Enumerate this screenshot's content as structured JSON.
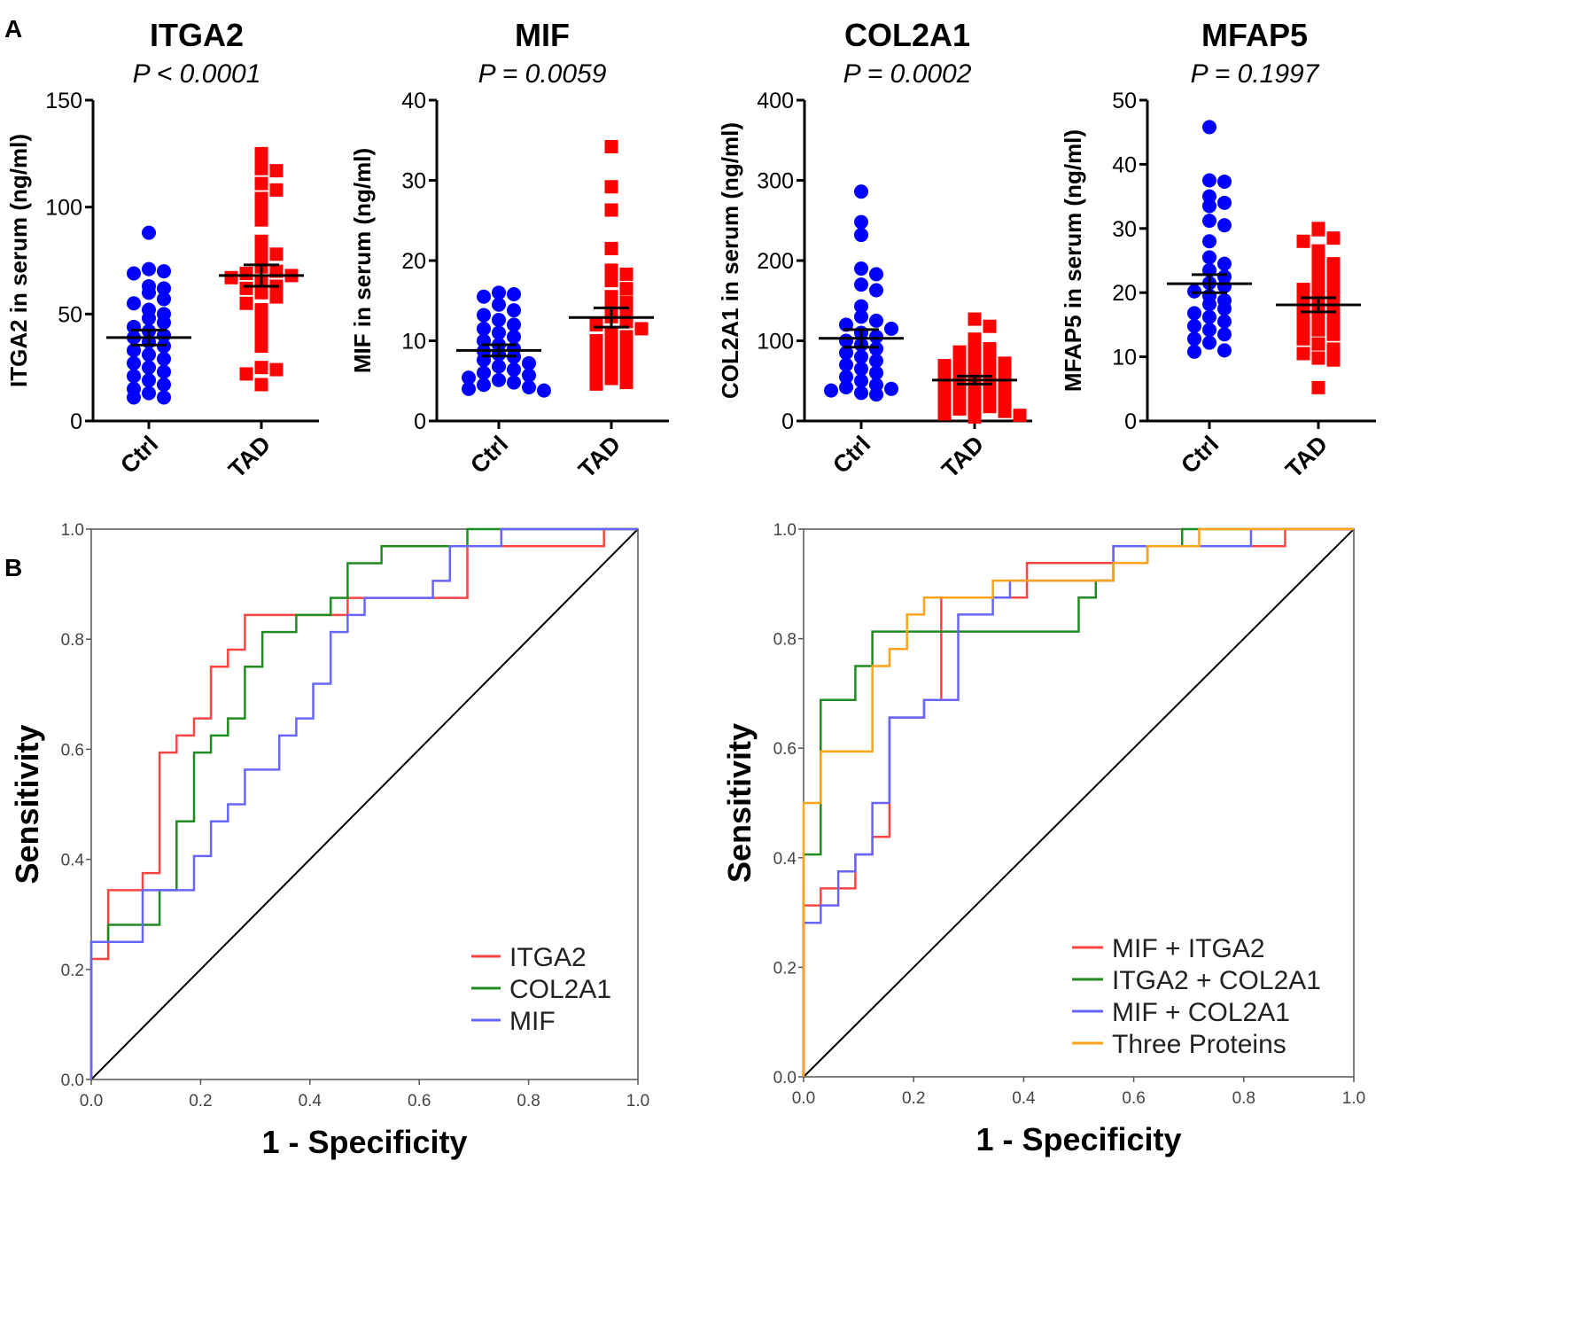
{
  "panels": {
    "a": "A",
    "b": "B"
  },
  "colors": {
    "ctrl": "#0000ff",
    "tad": "#ff0000",
    "red": "#ff4444",
    "green": "#1e8c1e",
    "blue": "#6666ff",
    "orange": "#ffa31a"
  },
  "chart_data": [
    {
      "type": "scatter",
      "title": "ITGA2",
      "subtitle": "P < 0.0001",
      "ylabel": "ITGA2 in serum (ng/ml)",
      "ylim": [
        0,
        150
      ],
      "yticks": [
        0,
        50,
        100,
        150
      ],
      "categories": [
        "Ctrl",
        "TAD"
      ],
      "groups": [
        {
          "name": "Ctrl",
          "mean": 39,
          "sem": 3.5,
          "values": [
            88,
            71,
            70,
            69,
            63,
            62,
            60,
            57,
            55,
            52,
            50,
            48,
            46,
            44,
            42,
            40,
            39,
            37,
            35,
            33,
            31,
            29,
            27,
            25,
            23,
            21,
            19,
            17,
            15,
            13,
            11,
            11
          ]
        },
        {
          "name": "TAD",
          "mean": 68,
          "sem": 5,
          "values": [
            125,
            121,
            118,
            117,
            111,
            108,
            104,
            99,
            94,
            84,
            80,
            78,
            75,
            72,
            70,
            69,
            68,
            67,
            65,
            63,
            62,
            60,
            58,
            55,
            52,
            47,
            41,
            35,
            25,
            24,
            22,
            17
          ]
        }
      ]
    },
    {
      "type": "scatter",
      "title": "MIF",
      "subtitle": "P = 0.0059",
      "ylabel": "MIF in serum (ng/ml)",
      "ylim": [
        0,
        40
      ],
      "yticks": [
        0,
        10,
        20,
        30,
        40
      ],
      "categories": [
        "Ctrl",
        "TAD"
      ],
      "groups": [
        {
          "name": "Ctrl",
          "mean": 8.8,
          "sem": 0.7,
          "values": [
            16,
            15.8,
            15.5,
            14.5,
            13.8,
            13.2,
            12.6,
            12,
            11.5,
            11,
            10.5,
            10,
            9.5,
            9,
            8.7,
            8.3,
            8,
            7.6,
            7.2,
            6.8,
            6.4,
            6,
            5.7,
            5.4,
            5.1,
            4.8,
            4.5,
            4.2,
            4,
            3.8
          ]
        },
        {
          "name": "TAD",
          "mean": 12.9,
          "sem": 1.2,
          "values": [
            34.2,
            29.2,
            26.3,
            21.5,
            18.8,
            18.3,
            17.5,
            16.5,
            15.5,
            14.8,
            14,
            13.4,
            13,
            12.4,
            12,
            11.5,
            11,
            10.5,
            10,
            9.5,
            9,
            8.5,
            8,
            7.5,
            7,
            6.6,
            6,
            5.6,
            5.3,
            4.8,
            4.6
          ]
        }
      ]
    },
    {
      "type": "scatter",
      "title": "COL2A1",
      "subtitle": "P = 0.0002",
      "ylabel": "COL2A1 in serum (ng/ml)",
      "ylim": [
        0,
        400
      ],
      "yticks": [
        0,
        100,
        200,
        300,
        400
      ],
      "categories": [
        "Ctrl",
        "TAD"
      ],
      "groups": [
        {
          "name": "Ctrl",
          "mean": 103,
          "sem": 11,
          "values": [
            286,
            248,
            232,
            190,
            183,
            170,
            163,
            143,
            130,
            125,
            120,
            115,
            110,
            105,
            100,
            95,
            90,
            85,
            80,
            75,
            70,
            65,
            60,
            55,
            50,
            45,
            42,
            40,
            38,
            35,
            33
          ]
        },
        {
          "name": "TAD",
          "mean": 51,
          "sem": 5,
          "values": [
            127,
            118,
            102,
            95,
            90,
            86,
            82,
            78,
            75,
            72,
            69,
            66,
            63,
            60,
            57,
            54,
            51,
            48,
            45,
            42,
            39,
            36,
            33,
            30,
            27,
            24,
            21,
            18,
            15,
            12,
            9,
            7,
            5
          ]
        }
      ]
    },
    {
      "type": "scatter",
      "title": "MFAP5",
      "subtitle": "P = 0.1997",
      "ylabel": "MFAP5 in serum (ng/ml)",
      "ylim": [
        0,
        50
      ],
      "yticks": [
        0,
        10,
        20,
        30,
        40,
        50
      ],
      "categories": [
        "Ctrl",
        "TAD"
      ],
      "groups": [
        {
          "name": "Ctrl",
          "mean": 21.4,
          "sem": 1.4,
          "values": [
            45.8,
            37.5,
            37.3,
            35,
            34,
            33.5,
            31.2,
            30.5,
            28,
            25.5,
            24.5,
            23.5,
            22.5,
            21.5,
            21,
            20.2,
            19.5,
            18.8,
            18.2,
            17.5,
            16.8,
            16.2,
            15.5,
            14.8,
            14.2,
            13.5,
            12.8,
            12.2,
            11,
            10.8
          ]
        },
        {
          "name": "TAD",
          "mean": 18.1,
          "sem": 1.1,
          "values": [
            30,
            29.8,
            28.5,
            28,
            26.5,
            25.5,
            24.5,
            23.5,
            22.5,
            21.5,
            21,
            20.5,
            19.8,
            19.2,
            18.5,
            18,
            17.5,
            16.8,
            16.2,
            15.5,
            14.8,
            14.2,
            13.5,
            12.8,
            12,
            11.2,
            10.5,
            9.8,
            9.5,
            5.2
          ]
        }
      ]
    },
    {
      "type": "line",
      "title": "",
      "xlabel": "1 - Specificity",
      "ylabel": "Sensitivity",
      "xlim": [
        0,
        1
      ],
      "ylim": [
        0,
        1
      ],
      "xticks": [
        "0.0",
        "0.2",
        "0.4",
        "0.6",
        "0.8",
        "1.0"
      ],
      "yticks": [
        "0.0",
        "0.2",
        "0.4",
        "0.6",
        "0.8",
        "1.0"
      ],
      "legend": [
        "ITGA2",
        "COL2A1",
        "MIF"
      ],
      "series": [
        {
          "name": "ITGA2",
          "color": "#ff4444",
          "x": [
            0,
            0,
            0.031,
            0.031,
            0.094,
            0.094,
            0.125,
            0.125,
            0.156,
            0.156,
            0.188,
            0.188,
            0.219,
            0.219,
            0.25,
            0.25,
            0.281,
            0.281,
            0.469,
            0.469,
            0.688,
            0.688,
            0.938,
            0.938,
            1
          ],
          "y": [
            0,
            0.219,
            0.219,
            0.344,
            0.344,
            0.375,
            0.375,
            0.594,
            0.594,
            0.625,
            0.625,
            0.656,
            0.656,
            0.75,
            0.75,
            0.781,
            0.781,
            0.844,
            0.844,
            0.875,
            0.875,
            0.969,
            0.969,
            1,
            1
          ]
        },
        {
          "name": "COL2A1",
          "color": "#1e8c1e",
          "x": [
            0,
            0,
            0.031,
            0.031,
            0.125,
            0.125,
            0.156,
            0.156,
            0.188,
            0.188,
            0.219,
            0.219,
            0.25,
            0.25,
            0.281,
            0.281,
            0.313,
            0.313,
            0.375,
            0.375,
            0.438,
            0.438,
            0.469,
            0.469,
            0.531,
            0.531,
            0.688,
            0.688,
            0.75,
            0.75,
            1
          ],
          "y": [
            0,
            0.25,
            0.25,
            0.281,
            0.281,
            0.344,
            0.344,
            0.469,
            0.469,
            0.594,
            0.594,
            0.625,
            0.625,
            0.656,
            0.656,
            0.75,
            0.75,
            0.813,
            0.813,
            0.844,
            0.844,
            0.875,
            0.875,
            0.938,
            0.938,
            0.969,
            0.969,
            1,
            1,
            1,
            1
          ]
        },
        {
          "name": "MIF",
          "color": "#6666ff",
          "x": [
            0,
            0,
            0.094,
            0.094,
            0.188,
            0.188,
            0.219,
            0.219,
            0.25,
            0.25,
            0.281,
            0.281,
            0.344,
            0.344,
            0.375,
            0.375,
            0.406,
            0.406,
            0.438,
            0.438,
            0.469,
            0.469,
            0.5,
            0.5,
            0.625,
            0.625,
            0.656,
            0.656,
            0.75,
            0.75,
            0.875,
            0.875,
            1
          ],
          "y": [
            0,
            0.25,
            0.25,
            0.344,
            0.344,
            0.406,
            0.406,
            0.469,
            0.469,
            0.5,
            0.5,
            0.563,
            0.563,
            0.625,
            0.625,
            0.656,
            0.656,
            0.719,
            0.719,
            0.813,
            0.813,
            0.844,
            0.844,
            0.875,
            0.875,
            0.906,
            0.906,
            0.969,
            0.969,
            1,
            1,
            1,
            1
          ]
        }
      ]
    },
    {
      "type": "line",
      "title": "",
      "xlabel": "1 - Specificity",
      "ylabel": "Sensitivity",
      "xlim": [
        0,
        1
      ],
      "ylim": [
        0,
        1
      ],
      "xticks": [
        "0.0",
        "0.2",
        "0.4",
        "0.6",
        "0.8",
        "1.0"
      ],
      "yticks": [
        "0.0",
        "0.2",
        "0.4",
        "0.6",
        "0.8",
        "1.0"
      ],
      "legend": [
        "MIF + ITGA2",
        "ITGA2 + COL2A1",
        "MIF + COL2A1",
        "Three Proteins"
      ],
      "series": [
        {
          "name": "MIF + ITGA2",
          "color": "#ff4444",
          "x": [
            0,
            0,
            0.031,
            0.031,
            0.094,
            0.094,
            0.125,
            0.125,
            0.156,
            0.156,
            0.219,
            0.219,
            0.25,
            0.25,
            0.281,
            0.281,
            0.406,
            0.406,
            0.5,
            0.5,
            0.563,
            0.563,
            0.875,
            0.875,
            1
          ],
          "y": [
            0,
            0.313,
            0.313,
            0.344,
            0.344,
            0.406,
            0.406,
            0.438,
            0.438,
            0.656,
            0.656,
            0.688,
            0.688,
            0.875,
            0.875,
            0.875,
            0.875,
            0.938,
            0.938,
            0.938,
            0.938,
            0.969,
            0.969,
            1,
            1
          ]
        },
        {
          "name": "ITGA2 + COL2A1",
          "color": "#1e8c1e",
          "x": [
            0,
            0,
            0.031,
            0.031,
            0.094,
            0.094,
            0.125,
            0.125,
            0.5,
            0.5,
            0.531,
            0.531,
            0.563,
            0.563,
            0.625,
            0.625,
            0.688,
            0.688,
            0.75,
            0.75,
            1
          ],
          "y": [
            0,
            0.406,
            0.406,
            0.688,
            0.688,
            0.75,
            0.75,
            0.813,
            0.813,
            0.875,
            0.875,
            0.906,
            0.906,
            0.938,
            0.938,
            0.969,
            0.969,
            1,
            1,
            1,
            1
          ]
        },
        {
          "name": "MIF + COL2A1",
          "color": "#6666ff",
          "x": [
            0,
            0,
            0.031,
            0.031,
            0.063,
            0.063,
            0.094,
            0.094,
            0.125,
            0.125,
            0.156,
            0.156,
            0.219,
            0.219,
            0.25,
            0.25,
            0.281,
            0.281,
            0.344,
            0.344,
            0.375,
            0.375,
            0.563,
            0.563,
            0.813,
            0.813,
            1
          ],
          "y": [
            0,
            0.281,
            0.281,
            0.313,
            0.313,
            0.375,
            0.375,
            0.406,
            0.406,
            0.5,
            0.5,
            0.656,
            0.656,
            0.688,
            0.688,
            0.688,
            0.688,
            0.844,
            0.844,
            0.875,
            0.875,
            0.906,
            0.906,
            0.969,
            0.969,
            1,
            1
          ]
        },
        {
          "name": "Three Proteins",
          "color": "#ffa31a",
          "x": [
            0,
            0,
            0.031,
            0.031,
            0.125,
            0.125,
            0.156,
            0.156,
            0.188,
            0.188,
            0.219,
            0.219,
            0.344,
            0.344,
            0.375,
            0.375,
            0.563,
            0.563,
            0.625,
            0.625,
            0.719,
            0.719,
            1
          ],
          "y": [
            0,
            0.5,
            0.5,
            0.594,
            0.594,
            0.75,
            0.75,
            0.781,
            0.781,
            0.844,
            0.844,
            0.875,
            0.875,
            0.906,
            0.906,
            0.906,
            0.906,
            0.938,
            0.938,
            0.969,
            0.969,
            1,
            1
          ]
        }
      ]
    }
  ]
}
